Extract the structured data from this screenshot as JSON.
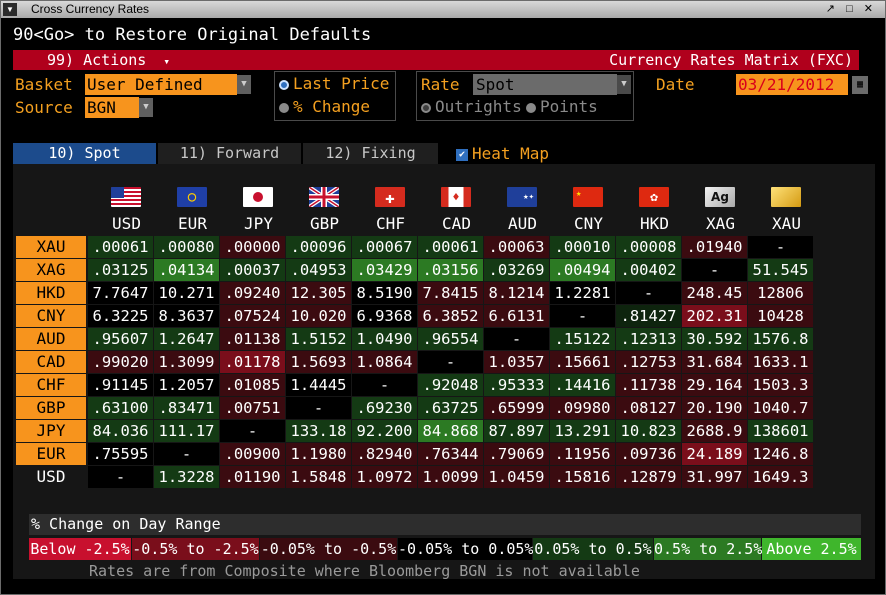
{
  "window": {
    "title": "Cross Currency Rates",
    "controls": "↗ □ ✕"
  },
  "command": {
    "text": "90<Go> to Restore Original Defaults"
  },
  "toolbar": {
    "actions_label": "99) Actions",
    "actions_arrow": "▾",
    "matrix_title": "Currency Rates Matrix (FXC)"
  },
  "form": {
    "basket_label": "Basket",
    "basket_value": "User Defined",
    "source_label": "Source",
    "source_value": "BGN",
    "display_option_1": "Last Price",
    "display_option_2": "% Change",
    "display_selected": "Last Price",
    "rate_label": "Rate",
    "rate_value": "Spot",
    "rate_option_1": "Outrights",
    "rate_option_2": "Points",
    "date_label": "Date",
    "date_value": "03/21/2012",
    "dropdown_arrow": "▼"
  },
  "tabs": [
    {
      "label": "10) Spot",
      "active": true
    },
    {
      "label": "11) Forward",
      "active": false
    },
    {
      "label": "12) Fixing",
      "active": false
    }
  ],
  "heatmap": {
    "label": "Heat Map",
    "checked": true,
    "check_glyph": "✔"
  },
  "columns": [
    {
      "code": "USD",
      "flag_icon": "us-flag-icon",
      "flag_text": ""
    },
    {
      "code": "EUR",
      "flag_icon": "eu-flag-icon",
      "flag_text": ""
    },
    {
      "code": "JPY",
      "flag_icon": "jp-flag-icon",
      "flag_text": ""
    },
    {
      "code": "GBP",
      "flag_icon": "gb-flag-icon",
      "flag_text": ""
    },
    {
      "code": "CHF",
      "flag_icon": "ch-flag-icon",
      "flag_text": ""
    },
    {
      "code": "CAD",
      "flag_icon": "ca-flag-icon",
      "flag_text": ""
    },
    {
      "code": "AUD",
      "flag_icon": "au-flag-icon",
      "flag_text": ""
    },
    {
      "code": "CNY",
      "flag_icon": "cn-flag-icon",
      "flag_text": ""
    },
    {
      "code": "HKD",
      "flag_icon": "hk-flag-icon",
      "flag_text": ""
    },
    {
      "code": "XAG",
      "flag_icon": "silver-bar-icon",
      "flag_text": "Ag"
    },
    {
      "code": "XAU",
      "flag_icon": "gold-bar-icon",
      "flag_text": ""
    }
  ],
  "rows": [
    {
      "code": "XAU",
      "values": [
        ".00061",
        ".00080",
        ".00000",
        ".00096",
        ".00067",
        ".00061",
        ".00063",
        ".00010",
        ".00008",
        ".01940",
        "-"
      ],
      "heat": [
        "lg",
        "lg",
        "r",
        "lg",
        "lg",
        "lg",
        "r",
        "lg",
        "lg",
        "r",
        "n"
      ]
    },
    {
      "code": "XAG",
      "values": [
        ".03125",
        ".04134",
        ".00037",
        ".04953",
        ".03429",
        ".03156",
        ".03269",
        ".00494",
        ".00402",
        "-",
        "51.545"
      ],
      "heat": [
        "lg",
        "mg",
        "lg",
        "lg",
        "mg",
        "mg",
        "lg",
        "mg",
        "lg",
        "n",
        "lg"
      ]
    },
    {
      "code": "HKD",
      "values": [
        "7.7647",
        "10.271",
        ".09240",
        "12.305",
        "8.5190",
        "7.8415",
        "8.1214",
        "1.2281",
        "-",
        "248.45",
        "12806"
      ],
      "heat": [
        "n",
        "n",
        "r",
        "r",
        "n",
        "r",
        "r",
        "n",
        "n",
        "r",
        "r"
      ]
    },
    {
      "code": "CNY",
      "values": [
        "6.3225",
        "8.3637",
        ".07524",
        "10.020",
        "6.9368",
        "6.3852",
        "6.6131",
        "-",
        ".81427",
        "202.31",
        "10428"
      ],
      "heat": [
        "n",
        "n",
        "r",
        "r",
        "n",
        "r",
        "r",
        "n",
        "dg",
        "br",
        "r"
      ]
    },
    {
      "code": "AUD",
      "values": [
        ".95607",
        "1.2647",
        ".01138",
        "1.5152",
        "1.0490",
        ".96554",
        "-",
        ".15122",
        ".12313",
        "30.592",
        "1576.8"
      ],
      "heat": [
        "lg",
        "lg",
        "r",
        "lg",
        "lg",
        "lg",
        "n",
        "lg",
        "lg",
        "lg",
        "lg"
      ]
    },
    {
      "code": "CAD",
      "values": [
        ".99020",
        "1.3099",
        ".01178",
        "1.5693",
        "1.0864",
        "-",
        "1.0357",
        ".15661",
        ".12753",
        "31.684",
        "1633.1"
      ],
      "heat": [
        "r",
        "r",
        "br",
        "r",
        "r",
        "n",
        "r",
        "r",
        "r",
        "r",
        "r"
      ]
    },
    {
      "code": "CHF",
      "values": [
        ".91145",
        "1.2057",
        ".01085",
        "1.4445",
        "-",
        ".92048",
        ".95333",
        ".14416",
        ".11738",
        "29.164",
        "1503.3"
      ],
      "heat": [
        "n",
        "n",
        "r",
        "n",
        "n",
        "lg",
        "lg",
        "lg",
        "r",
        "r",
        "r"
      ]
    },
    {
      "code": "GBP",
      "values": [
        ".63100",
        ".83471",
        ".00751",
        "-",
        ".69230",
        ".63725",
        ".65999",
        ".09980",
        ".08127",
        "20.190",
        "1040.7"
      ],
      "heat": [
        "lg",
        "lg",
        "r",
        "n",
        "lg",
        "lg",
        "r",
        "r",
        "r",
        "r",
        "r"
      ]
    },
    {
      "code": "JPY",
      "values": [
        "84.036",
        "111.17",
        "-",
        "133.18",
        "92.200",
        "84.868",
        "87.897",
        "13.291",
        "10.823",
        "2688.9",
        "138601"
      ],
      "heat": [
        "lg",
        "lg",
        "n",
        "lg",
        "lg",
        "mg",
        "lg",
        "lg",
        "lg",
        "r",
        "lg"
      ]
    },
    {
      "code": "EUR",
      "values": [
        ".75595",
        "-",
        ".00900",
        "1.1980",
        ".82940",
        ".76344",
        ".79069",
        ".11956",
        ".09736",
        "24.189",
        "1246.8"
      ],
      "heat": [
        "n",
        "n",
        "r",
        "r",
        "r",
        "r",
        "r",
        "r",
        "r",
        "br",
        "r"
      ]
    },
    {
      "code": "USD",
      "values": [
        "-",
        "1.3228",
        ".01190",
        "1.5848",
        "1.0972",
        "1.0099",
        "1.0459",
        ".15816",
        ".12879",
        "31.997",
        "1649.3"
      ],
      "heat": [
        "n",
        "lg",
        "r",
        "r",
        "r",
        "r",
        "r",
        "r",
        "r",
        "r",
        "r"
      ]
    }
  ],
  "legend": {
    "title": "% Change on Day Range",
    "ranges": [
      {
        "label": "Below -2.5%",
        "color": "#c8102e"
      },
      {
        "label": "-0.5% to -2.5%",
        "color": "#7a0e1b"
      },
      {
        "label": "-0.05% to -0.5%",
        "color": "#3b0b10"
      },
      {
        "label": "-0.05% to 0.05%",
        "color": "#000000"
      },
      {
        "label": "0.05% to 0.5%",
        "color": "#143a14"
      },
      {
        "label": "0.5% to 2.5%",
        "color": "#2c7a23"
      },
      {
        "label": "Above 2.5%",
        "color": "#3fb62c"
      }
    ]
  },
  "footnote": "Rates are from Composite where Bloomberg BGN is not available",
  "colors": {
    "accent_orange": "#f7941d",
    "label_orange": "#f4a020",
    "header_red": "#b0001c",
    "tab_active": "#1c4b8c",
    "heat": {
      "n": "#000000",
      "r": "#3b0b10",
      "br": "#7a0e1b",
      "lg": "#143a14",
      "mg": "#2c7a23",
      "dg": "#0e240e"
    }
  }
}
